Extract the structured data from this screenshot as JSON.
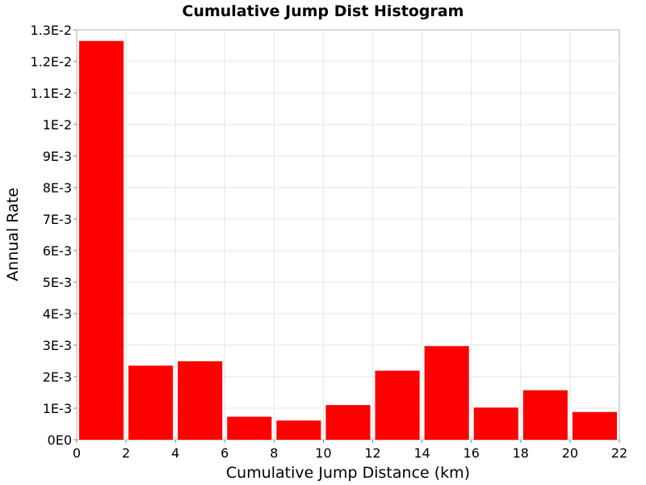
{
  "chart_data": {
    "type": "bar",
    "title": "Cumulative Jump Dist Histogram",
    "xlabel": "Cumulative Jump Distance (km)",
    "ylabel": "Annual Rate",
    "xlim": [
      0,
      22
    ],
    "ylim": [
      0,
      0.013
    ],
    "grid": true,
    "bar_color": "#ff0000",
    "bins": [
      {
        "x0": 0,
        "x1": 2,
        "value": 0.01265
      },
      {
        "x0": 2,
        "x1": 4,
        "value": 0.00235
      },
      {
        "x0": 4,
        "x1": 6,
        "value": 0.00249
      },
      {
        "x0": 6,
        "x1": 8,
        "value": 0.00073
      },
      {
        "x0": 8,
        "x1": 10,
        "value": 0.00061
      },
      {
        "x0": 10,
        "x1": 12,
        "value": 0.0011
      },
      {
        "x0": 12,
        "x1": 14,
        "value": 0.00219
      },
      {
        "x0": 14,
        "x1": 16,
        "value": 0.00297
      },
      {
        "x0": 16,
        "x1": 18,
        "value": 0.00102
      },
      {
        "x0": 18,
        "x1": 20,
        "value": 0.00157
      },
      {
        "x0": 20,
        "x1": 22,
        "value": 0.00088
      }
    ],
    "x_ticks": [
      {
        "value": 0,
        "label": "0"
      },
      {
        "value": 2,
        "label": "2"
      },
      {
        "value": 4,
        "label": "4"
      },
      {
        "value": 6,
        "label": "6"
      },
      {
        "value": 8,
        "label": "8"
      },
      {
        "value": 10,
        "label": "10"
      },
      {
        "value": 12,
        "label": "12"
      },
      {
        "value": 14,
        "label": "14"
      },
      {
        "value": 16,
        "label": "16"
      },
      {
        "value": 18,
        "label": "18"
      },
      {
        "value": 20,
        "label": "20"
      },
      {
        "value": 22,
        "label": "22"
      }
    ],
    "y_ticks": [
      {
        "value": 0,
        "label": "0E0"
      },
      {
        "value": 0.001,
        "label": "1E-3"
      },
      {
        "value": 0.002,
        "label": "2E-3"
      },
      {
        "value": 0.003,
        "label": "3E-3"
      },
      {
        "value": 0.004,
        "label": "4E-3"
      },
      {
        "value": 0.005,
        "label": "5E-3"
      },
      {
        "value": 0.006,
        "label": "6E-3"
      },
      {
        "value": 0.007,
        "label": "7E-3"
      },
      {
        "value": 0.008,
        "label": "8E-3"
      },
      {
        "value": 0.009,
        "label": "9E-3"
      },
      {
        "value": 0.01,
        "label": "1E-2"
      },
      {
        "value": 0.011,
        "label": "1.1E-2"
      },
      {
        "value": 0.012,
        "label": "1.2E-2"
      },
      {
        "value": 0.013,
        "label": "1.3E-2"
      }
    ]
  }
}
